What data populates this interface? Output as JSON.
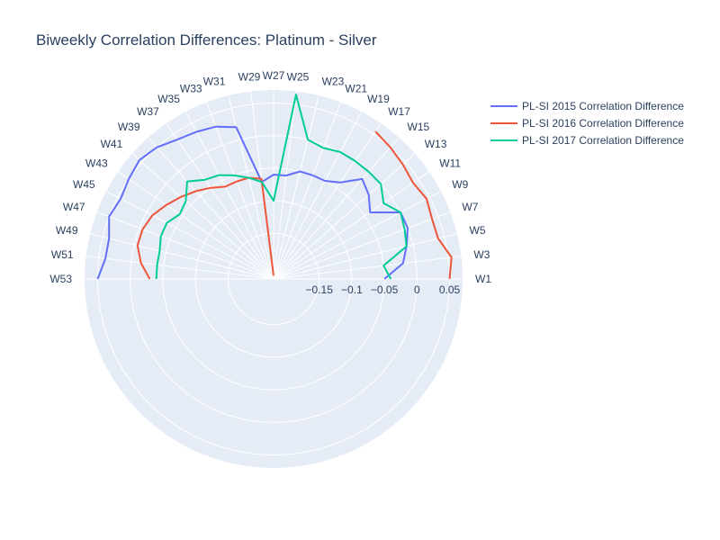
{
  "chart_data": {
    "type": "radar",
    "title": "Biweekly Correlation Differences: Platinum - Silver",
    "angular_ticks": [
      "W1",
      "W3",
      "W5",
      "W7",
      "W9",
      "W11",
      "W13",
      "W15",
      "W17",
      "W19",
      "W21",
      "W23",
      "W25",
      "W27",
      "W29",
      "W31",
      "W33",
      "W35",
      "W37",
      "W39",
      "W41",
      "W43",
      "W45",
      "W47",
      "W49",
      "W51",
      "W53"
    ],
    "radial_ticks": [
      -0.15,
      -0.1,
      -0.05,
      0,
      0.05
    ],
    "radial_tick_labels": [
      "−0.15",
      "−0.1",
      "−0.05",
      "0",
      "0.05"
    ],
    "radial_range": [
      -0.22,
      0.07
    ],
    "grid": true,
    "legend_position": "top-right",
    "series": [
      {
        "name": "PL-SI 2015 Correlation Difference",
        "color": "#636efa",
        "values": [
          -0.05,
          -0.02,
          -0.01,
          0.0,
          0.0,
          -0.04,
          -0.025,
          -0.015,
          -0.04,
          -0.05,
          -0.05,
          -0.05,
          -0.06,
          -0.06,
          -0.07,
          0.02,
          0.03,
          0.035,
          0.04,
          0.05,
          0.055,
          0.05,
          0.045,
          0.05,
          0.04,
          0.04,
          0.05
        ]
      },
      {
        "name": "PL-SI 2016 Correlation Difference",
        "color": "#ef553b",
        "values": [
          0.05,
          0.055,
          0.04,
          0.04,
          0.045,
          0.04,
          0.045,
          0.05,
          0.055,
          null,
          null,
          null,
          null,
          -0.215,
          -0.065,
          -0.06,
          -0.06,
          -0.06,
          -0.05,
          -0.04,
          -0.03,
          -0.02,
          -0.01,
          -0.005,
          -0.005,
          -0.015,
          -0.03
        ]
      },
      {
        "name": "PL-SI 2017 Correlation Difference",
        "color": "#00cc96",
        "values": [
          -0.04,
          -0.05,
          -0.01,
          -0.005,
          0.0,
          -0.015,
          0.0,
          0.0,
          0.0,
          0.0,
          -0.005,
          0.0,
          0.065,
          -0.1,
          -0.07,
          -0.06,
          -0.05,
          -0.04,
          -0.035,
          -0.02,
          -0.04,
          -0.045,
          -0.035,
          -0.035,
          -0.04,
          -0.04,
          -0.04
        ]
      }
    ]
  }
}
